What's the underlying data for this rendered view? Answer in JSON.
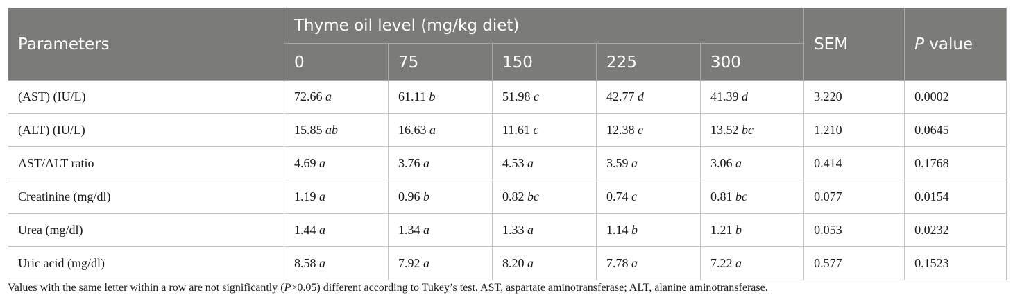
{
  "table": {
    "header": {
      "parameters": "Parameters",
      "group": "Thyme oil level (mg/kg diet)",
      "levels": [
        "0",
        "75",
        "150",
        "225",
        "300"
      ],
      "sem": "SEM",
      "p_italic": "P",
      "p_rest": " value"
    },
    "rows": [
      {
        "param": "(AST) (IU/L)",
        "cells": [
          [
            "72.66",
            "a"
          ],
          [
            "61.11",
            "b"
          ],
          [
            "51.98",
            "c"
          ],
          [
            "42.77",
            "d"
          ],
          [
            "41.39",
            "d"
          ]
        ],
        "sem": "3.220",
        "p": "0.0002"
      },
      {
        "param": "(ALT) (IU/L)",
        "cells": [
          [
            "15.85",
            "ab"
          ],
          [
            "16.63",
            "a"
          ],
          [
            "11.61",
            "c"
          ],
          [
            "12.38",
            "c"
          ],
          [
            "13.52",
            "bc"
          ]
        ],
        "sem": "1.210",
        "p": "0.0645"
      },
      {
        "param": "AST/ALT ratio",
        "cells": [
          [
            "4.69",
            "a"
          ],
          [
            "3.76",
            "a"
          ],
          [
            "4.53",
            "a"
          ],
          [
            "3.59",
            "a"
          ],
          [
            "3.06",
            "a"
          ]
        ],
        "sem": "0.414",
        "p": "0.1768"
      },
      {
        "param": "Creatinine (mg/dl)",
        "cells": [
          [
            "1.19",
            "a"
          ],
          [
            "0.96",
            "b"
          ],
          [
            "0.82",
            "bc"
          ],
          [
            "0.74",
            "c"
          ],
          [
            "0.81",
            "bc"
          ]
        ],
        "sem": "0.077",
        "p": "0.0154"
      },
      {
        "param": "Urea (mg/dl)",
        "cells": [
          [
            "1.44",
            "a"
          ],
          [
            "1.34",
            "a"
          ],
          [
            "1.33",
            "a"
          ],
          [
            "1.14",
            "b"
          ],
          [
            "1.21",
            "b"
          ]
        ],
        "sem": "0.053",
        "p": "0.0232"
      },
      {
        "param": "Uric acid (mg/dl)",
        "cells": [
          [
            "8.58",
            "a"
          ],
          [
            "7.92",
            "a"
          ],
          [
            "8.20",
            "a"
          ],
          [
            "7.78",
            "a"
          ],
          [
            "7.22",
            "a"
          ]
        ],
        "sem": "0.577",
        "p": "0.1523"
      }
    ]
  },
  "footnote": {
    "before": "Values with the same letter within a row are not significantly (",
    "p_italic": "P",
    "after": ">0.05) different according to Tukey’s test. AST, aspartate aminotransferase; ALT, alanine aminotransferase."
  }
}
